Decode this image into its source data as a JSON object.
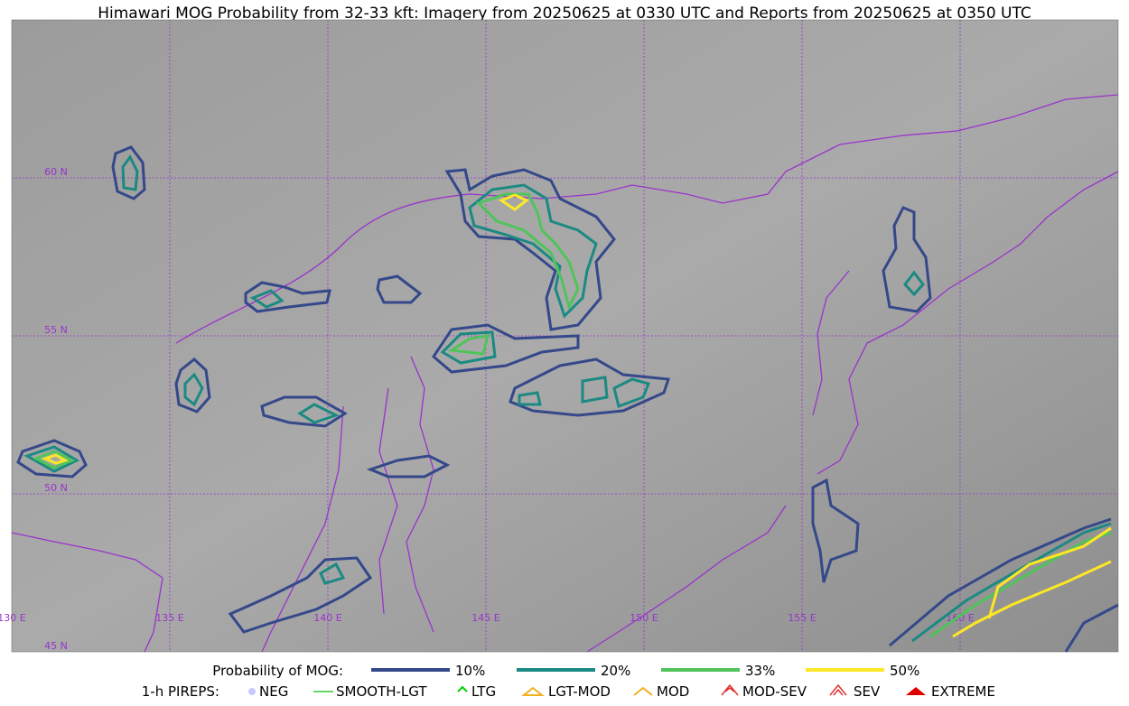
{
  "title": "Himawari MOG Probability from 32-33 kft: Imagery from 20250625 at 0330 UTC and Reports from 20250625 at 0350 UTC",
  "map": {
    "lat_labels": [
      "60 N",
      "55 N",
      "50 N",
      "45 N"
    ],
    "lon_labels": [
      "130 E",
      "135 E",
      "140 E",
      "145 E",
      "150 E",
      "155 E",
      "160 E"
    ]
  },
  "legend": {
    "probability": {
      "label": "Probability of MOG:",
      "items": [
        "10%",
        "20%",
        "33%",
        "50%"
      ]
    },
    "pireps": {
      "label": "1-h PIREPS:",
      "items": [
        "NEG",
        "SMOOTH-LGT",
        "LTG",
        "LGT-MOD",
        "MOD",
        "MOD-SEV",
        "SEV",
        "EXTREME"
      ]
    }
  }
}
